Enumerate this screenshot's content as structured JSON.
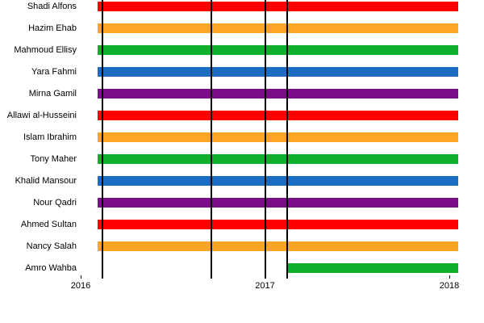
{
  "chart_data": {
    "type": "bar",
    "variant": "gantt-timeline",
    "title": "",
    "xlabel": "",
    "ylabel": "",
    "x_axis": {
      "min": 2016,
      "max": 2018.05,
      "ticks": [
        2016,
        2017,
        2018
      ]
    },
    "tick_labels": [
      "2016",
      "2017",
      "2018"
    ],
    "markers": [
      2016.12,
      2016.71,
      2017.0,
      2017.12
    ],
    "rows": [
      {
        "name": "Shadi Alfons",
        "color": "#ff0000",
        "start": 2016.09,
        "end": 2018.05
      },
      {
        "name": "Hazim Ehab",
        "color": "#ffa424",
        "start": 2016.09,
        "end": 2018.05
      },
      {
        "name": "Mahmoud Ellisy",
        "color": "#0db02b",
        "start": 2016.09,
        "end": 2018.05
      },
      {
        "name": "Yara Fahmi",
        "color": "#1b6cc2",
        "start": 2016.09,
        "end": 2018.05
      },
      {
        "name": "Mirna Gamil",
        "color": "#7a0e86",
        "start": 2016.09,
        "end": 2018.05
      },
      {
        "name": "Allawi al-Husseini",
        "color": "#ff0000",
        "start": 2016.09,
        "end": 2018.05
      },
      {
        "name": "Islam Ibrahim",
        "color": "#ffa424",
        "start": 2016.09,
        "end": 2018.05
      },
      {
        "name": "Tony Maher",
        "color": "#0db02b",
        "start": 2016.09,
        "end": 2018.05
      },
      {
        "name": "Khalid Mansour",
        "color": "#1b6cc2",
        "start": 2016.09,
        "end": 2018.05
      },
      {
        "name": "Nour Qadri",
        "color": "#7a0e86",
        "start": 2016.09,
        "end": 2018.05
      },
      {
        "name": "Ahmed Sultan",
        "color": "#ff0000",
        "start": 2016.09,
        "end": 2018.05
      },
      {
        "name": "Nancy Salah",
        "color": "#ffa424",
        "start": 2016.09,
        "end": 2018.05
      },
      {
        "name": "Amro Wahba",
        "color": "#0db02b",
        "start": 2017.12,
        "end": 2018.05
      }
    ]
  }
}
